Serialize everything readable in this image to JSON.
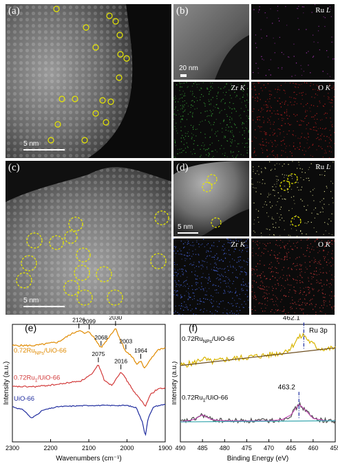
{
  "panels": {
    "a": {
      "label": "(a)",
      "scale_text": "5 nm"
    },
    "b": {
      "label": "(b)",
      "scale_text": "20 nm",
      "maps": [
        {
          "element": "Ru",
          "line": "L"
        },
        {
          "element": "Zr",
          "line": "K"
        },
        {
          "element": "O",
          "line": "K"
        }
      ]
    },
    "c": {
      "label": "(c)",
      "scale_text": "5 nm"
    },
    "d": {
      "label": "(d)",
      "scale_text": "5 nm",
      "maps": [
        {
          "element": "Ru",
          "line": "L"
        },
        {
          "element": "Zr",
          "line": "K"
        },
        {
          "element": "O",
          "line": "K"
        }
      ]
    },
    "e": {
      "label": "(e)"
    },
    "f": {
      "label": "(f)"
    }
  },
  "colors": {
    "ru_nps": "#e08a00",
    "ru_single": "#d23a3a",
    "uio": "#1f2c9e",
    "map_ru_b": "#b03ac0",
    "map_zr_b": "#3aa83a",
    "map_o_b": "#c42020",
    "map_ru_d": "#f0f0a0",
    "map_zr_d": "#4a6ae8",
    "map_o_d": "#d03a3a",
    "circle": "#e8e800",
    "xps_raw_nps": "#d8b400",
    "xps_raw_single": "#4a4a4a",
    "xps_bg_nps": "#6a4a1a",
    "xps_bg_single": "#3aa8b0",
    "xps_fit_single": "#c03ab0",
    "xps_dash": "#1c2c9e"
  },
  "chart_data": [
    {
      "type": "line",
      "panel": "(e)",
      "xlabel": "Wavenumbers (cm⁻¹)",
      "ylabel": "Intensity (a.u.)",
      "xlim": [
        2300,
        1900
      ],
      "xticks": [
        2300,
        2200,
        2100,
        2000,
        1900
      ],
      "grid": false,
      "series": [
        {
          "name": "0.72Ru",
          "name_sub": "NPs",
          "name_tail": "/UiO-66",
          "x": [
            2300,
            2240,
            2180,
            2150,
            2126,
            2110,
            2099,
            2085,
            2068,
            2050,
            2030,
            2015,
            2003,
            1985,
            1975,
            1964,
            1955,
            1940,
            1920,
            1900
          ],
          "y": [
            0.82,
            0.82,
            0.85,
            0.91,
            0.95,
            0.92,
            0.94,
            0.88,
            0.8,
            0.88,
            0.97,
            0.85,
            0.77,
            0.72,
            0.66,
            0.69,
            0.62,
            0.7,
            0.78,
            0.8
          ]
        },
        {
          "name": "0.72Ru",
          "name_sub": "1",
          "name_tail": "/UiO-66",
          "x": [
            2300,
            2240,
            2180,
            2120,
            2090,
            2075,
            2060,
            2040,
            2016,
            2000,
            1980,
            1960,
            1952,
            1940,
            1920,
            1900
          ],
          "y": [
            0.47,
            0.47,
            0.49,
            0.52,
            0.58,
            0.66,
            0.53,
            0.48,
            0.6,
            0.52,
            0.42,
            0.34,
            0.3,
            0.4,
            0.45,
            0.46
          ]
        },
        {
          "name": "UiO-66",
          "name_sub": "",
          "name_tail": "",
          "x": [
            2300,
            2270,
            2250,
            2220,
            2180,
            2100,
            2000,
            1975,
            1960,
            1952,
            1945,
            1930,
            1900
          ],
          "y": [
            0.3,
            0.27,
            0.2,
            0.27,
            0.3,
            0.31,
            0.31,
            0.29,
            0.17,
            0.05,
            0.2,
            0.3,
            0.32
          ]
        }
      ],
      "annotations": [
        {
          "text": "2126",
          "x": 2126,
          "series": 0
        },
        {
          "text": "2099",
          "x": 2099,
          "series": 0
        },
        {
          "text": "2068",
          "x": 2068,
          "series": 0
        },
        {
          "text": "2030",
          "x": 2030,
          "series": 0
        },
        {
          "text": "2003",
          "x": 2003,
          "series": 0
        },
        {
          "text": "1964",
          "x": 1964,
          "series": 0
        },
        {
          "text": "2075",
          "x": 2075,
          "series": 1
        },
        {
          "text": "2016",
          "x": 2016,
          "series": 1
        }
      ]
    },
    {
      "type": "line",
      "panel": "(f)",
      "title": "Ru 3p",
      "xlabel": "Binding Energy (eV)",
      "ylabel": "Intensity (a.u.)",
      "xlim": [
        490,
        455
      ],
      "xticks": [
        490,
        485,
        480,
        475,
        470,
        465,
        460,
        455
      ],
      "grid": false,
      "series": [
        {
          "name": "0.72Ru",
          "name_sub": "NPs",
          "name_tail": "/UiO-66",
          "x": [
            490,
            487,
            485,
            483,
            480,
            475,
            470,
            467,
            465,
            463.5,
            462.1,
            461,
            459,
            457,
            455
          ],
          "y": [
            0.65,
            0.67,
            0.71,
            0.68,
            0.7,
            0.72,
            0.74,
            0.76,
            0.8,
            0.88,
            0.91,
            0.86,
            0.8,
            0.79,
            0.8
          ]
        },
        {
          "name": "0.72Ru",
          "name_sub": "1",
          "name_tail": "/UiO-66",
          "x": [
            490,
            487,
            485,
            483,
            480,
            475,
            470,
            467,
            465,
            464,
            463.2,
            462,
            460,
            457,
            455
          ],
          "y": [
            0.17,
            0.19,
            0.23,
            0.19,
            0.18,
            0.18,
            0.18,
            0.19,
            0.23,
            0.28,
            0.32,
            0.28,
            0.2,
            0.18,
            0.18
          ]
        }
      ],
      "annotations": [
        {
          "text": "462.1",
          "x": 462.1,
          "series": 0
        },
        {
          "text": "463.2",
          "x": 463.2,
          "series": 1
        }
      ]
    }
  ]
}
